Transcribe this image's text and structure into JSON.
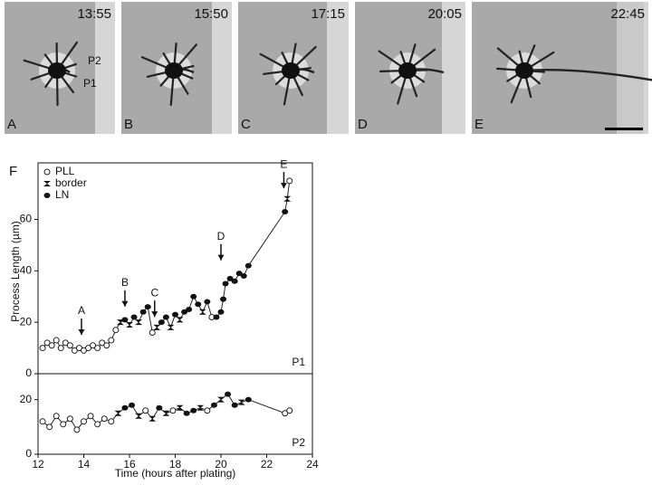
{
  "micrographs": [
    {
      "label": "A",
      "time": "13:55"
    },
    {
      "label": "B",
      "time": "15:50"
    },
    {
      "label": "C",
      "time": "17:15"
    },
    {
      "label": "D",
      "time": "20:05"
    },
    {
      "label": "E",
      "time": "22:45"
    }
  ],
  "cell_labels": [
    "P2",
    "P1"
  ],
  "figure_label": "F",
  "chart_data": [
    {
      "type": "line",
      "panel": "P1",
      "ylabel": "Process Length (µm)",
      "marker_kinds": [
        "PLL",
        "border",
        "LN"
      ],
      "xlim": [
        12,
        24
      ],
      "ylim": [
        0,
        82
      ],
      "yticks": [
        0,
        20,
        40,
        60
      ],
      "x": [
        12.2,
        12.4,
        12.6,
        12.8,
        13.0,
        13.2,
        13.4,
        13.6,
        13.8,
        14.0,
        14.2,
        14.4,
        14.6,
        14.8,
        15.0,
        15.2,
        15.4,
        15.6,
        15.8,
        16.0,
        16.2,
        16.4,
        16.6,
        16.8,
        17.0,
        17.2,
        17.4,
        17.6,
        17.8,
        18.0,
        18.2,
        18.4,
        18.6,
        18.8,
        19.0,
        19.2,
        19.4,
        19.6,
        19.8,
        20.0,
        20.1,
        20.2,
        20.4,
        20.6,
        20.8,
        21.0,
        21.2,
        22.8,
        22.9,
        23.0
      ],
      "values": [
        10,
        12,
        11,
        13,
        10,
        12,
        11,
        9,
        10,
        9,
        10,
        11,
        10,
        12,
        11,
        13,
        17,
        20,
        21,
        19,
        22,
        20,
        24,
        26,
        16,
        18,
        20,
        22,
        18,
        23,
        21,
        24,
        25,
        30,
        27,
        24,
        28,
        22,
        22,
        24,
        29,
        35,
        37,
        36,
        39,
        38,
        42,
        63,
        68,
        75
      ],
      "markers": [
        "PLL",
        "PLL",
        "PLL",
        "PLL",
        "PLL",
        "PLL",
        "PLL",
        "PLL",
        "PLL",
        "PLL",
        "PLL",
        "PLL",
        "PLL",
        "PLL",
        "PLL",
        "PLL",
        "PLL",
        "border",
        "LN",
        "border",
        "LN",
        "border",
        "LN",
        "LN",
        "PLL",
        "border",
        "LN",
        "LN",
        "border",
        "LN",
        "border",
        "LN",
        "LN",
        "LN",
        "LN",
        "border",
        "LN",
        "PLL",
        "LN",
        "LN",
        "LN",
        "LN",
        "LN",
        "LN",
        "LN",
        "LN",
        "LN",
        "LN",
        "border",
        "PLL"
      ],
      "annotations": [
        {
          "text": "A",
          "x": 13.9,
          "y": 13
        },
        {
          "text": "B",
          "x": 15.8,
          "y": 24
        },
        {
          "text": "C",
          "x": 17.1,
          "y": 20
        },
        {
          "text": "D",
          "x": 20.0,
          "y": 42
        },
        {
          "text": "E",
          "x": 22.75,
          "y": 70
        }
      ]
    },
    {
      "type": "line",
      "panel": "P2",
      "xlabel": "Time (hours after plating)",
      "xlim": [
        12,
        24
      ],
      "xticks": [
        12,
        14,
        16,
        18,
        20,
        22,
        24
      ],
      "ylim": [
        0,
        29.5
      ],
      "yticks": [
        0,
        20
      ],
      "x": [
        12.2,
        12.5,
        12.8,
        13.1,
        13.4,
        13.7,
        14.0,
        14.3,
        14.6,
        14.9,
        15.2,
        15.5,
        15.8,
        16.1,
        16.4,
        16.7,
        17.0,
        17.3,
        17.6,
        17.9,
        18.2,
        18.5,
        18.8,
        19.1,
        19.4,
        19.7,
        20.0,
        20.3,
        20.6,
        20.9,
        21.2,
        22.8,
        23.0
      ],
      "values": [
        12,
        10,
        14,
        11,
        13,
        9,
        12,
        14,
        11,
        13,
        12,
        15,
        17,
        18,
        14,
        16,
        13,
        17,
        15,
        16,
        17,
        15,
        16,
        17,
        16,
        18,
        20,
        22,
        18,
        19,
        20,
        15,
        16
      ],
      "markers": [
        "PLL",
        "PLL",
        "PLL",
        "PLL",
        "PLL",
        "PLL",
        "PLL",
        "PLL",
        "PLL",
        "PLL",
        "PLL",
        "border",
        "LN",
        "LN",
        "border",
        "PLL",
        "border",
        "LN",
        "border",
        "PLL",
        "border",
        "LN",
        "LN",
        "border",
        "PLL",
        "LN",
        "border",
        "LN",
        "LN",
        "border",
        "LN",
        "PLL",
        "PLL"
      ]
    }
  ]
}
